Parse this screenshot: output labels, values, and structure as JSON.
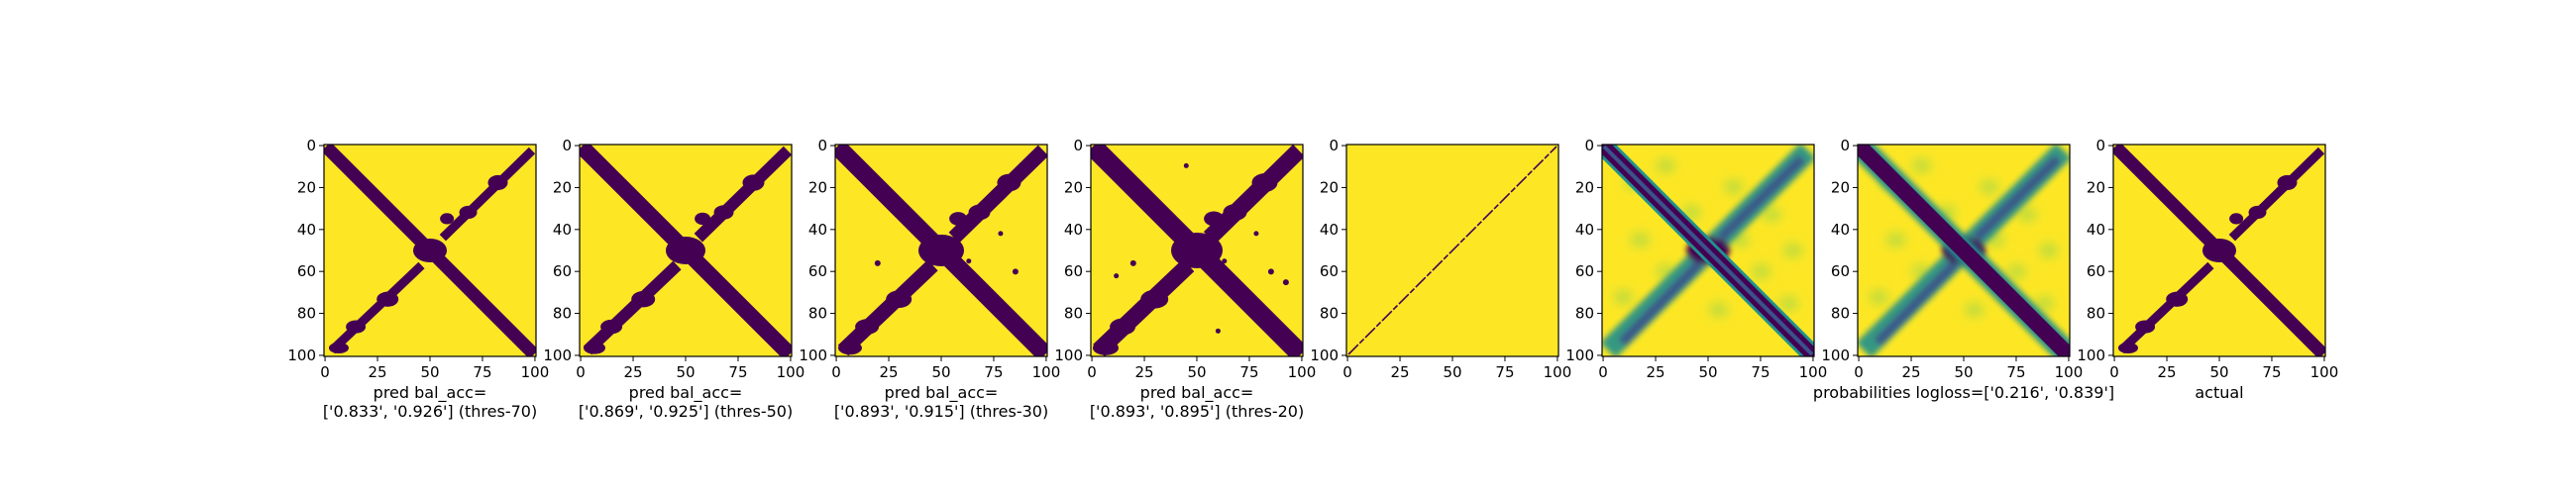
{
  "figure": {
    "background": "#ffffff"
  },
  "colors": {
    "high": "#fde725",
    "low": "#440154",
    "mid_teal": "#21918c",
    "mid_blue": "#3b528b",
    "light_green": "#5ec962"
  },
  "chart_data": [
    {
      "type": "heatmap",
      "panel": "pred-70",
      "matrix_size": 101,
      "xticks": [
        "0",
        "25",
        "50",
        "75",
        "100"
      ],
      "yticks": [
        "0",
        "20",
        "40",
        "60",
        "80",
        "100"
      ],
      "xlim": [
        0,
        100
      ],
      "ylim": [
        100,
        0
      ],
      "colormap": "viridis",
      "caption_line1": "pred bal_acc=",
      "caption_line2": "['0.833', '0.926'] (thres-70)"
    },
    {
      "type": "heatmap",
      "panel": "pred-50",
      "matrix_size": 101,
      "xticks": [
        "0",
        "25",
        "50",
        "75",
        "100"
      ],
      "yticks": [
        "0",
        "20",
        "40",
        "60",
        "80",
        "100"
      ],
      "xlim": [
        0,
        100
      ],
      "ylim": [
        100,
        0
      ],
      "colormap": "viridis",
      "caption_line1": "pred bal_acc=",
      "caption_line2": "['0.869', '0.925'] (thres-50)"
    },
    {
      "type": "heatmap",
      "panel": "pred-30",
      "matrix_size": 101,
      "xticks": [
        "0",
        "25",
        "50",
        "75",
        "100"
      ],
      "yticks": [
        "0",
        "20",
        "40",
        "60",
        "80",
        "100"
      ],
      "xlim": [
        0,
        100
      ],
      "ylim": [
        100,
        0
      ],
      "colormap": "viridis",
      "caption_line1": "pred bal_acc=",
      "caption_line2": "['0.893', '0.915'] (thres-30)"
    },
    {
      "type": "heatmap",
      "panel": "pred-20",
      "matrix_size": 101,
      "xticks": [
        "0",
        "25",
        "50",
        "75",
        "100"
      ],
      "yticks": [
        "0",
        "20",
        "40",
        "60",
        "80",
        "100"
      ],
      "xlim": [
        0,
        100
      ],
      "ylim": [
        100,
        0
      ],
      "colormap": "viridis",
      "caption_line1": "pred bal_acc=",
      "caption_line2": "['0.893', '0.895'] (thres-20)"
    },
    {
      "type": "heatmap",
      "panel": "anti-diagonal",
      "matrix_size": 101,
      "xticks": [
        "0",
        "25",
        "50",
        "75",
        "100"
      ],
      "yticks": [
        "0",
        "20",
        "40",
        "60",
        "80",
        "100"
      ],
      "xlim": [
        0,
        100
      ],
      "ylim": [
        100,
        0
      ],
      "colormap": "viridis",
      "caption_line1": "",
      "caption_line2": ""
    },
    {
      "type": "heatmap",
      "panel": "probabilities",
      "matrix_size": 101,
      "xticks": [
        "0",
        "25",
        "50",
        "75",
        "100"
      ],
      "yticks": [
        "0",
        "20",
        "40",
        "60",
        "80",
        "100"
      ],
      "xlim": [
        0,
        100
      ],
      "ylim": [
        100,
        0
      ],
      "colormap": "viridis",
      "caption_line1": "",
      "caption_line2": ""
    },
    {
      "type": "heatmap",
      "panel": "probabilities-logloss",
      "matrix_size": 101,
      "xticks": [
        "0",
        "25",
        "50",
        "75",
        "100"
      ],
      "yticks": [
        "0",
        "20",
        "40",
        "60",
        "80",
        "100"
      ],
      "xlim": [
        0,
        100
      ],
      "ylim": [
        100,
        0
      ],
      "colormap": "viridis",
      "caption_line1": "probabilities logloss=['0.216', '0.839']",
      "caption_line2": ""
    },
    {
      "type": "heatmap",
      "panel": "actual",
      "matrix_size": 101,
      "xticks": [
        "0",
        "25",
        "50",
        "75",
        "100"
      ],
      "yticks": [
        "0",
        "20",
        "40",
        "60",
        "80",
        "100"
      ],
      "xlim": [
        0,
        100
      ],
      "ylim": [
        100,
        0
      ],
      "colormap": "viridis",
      "caption_line1": "actual",
      "caption_line2": ""
    }
  ]
}
